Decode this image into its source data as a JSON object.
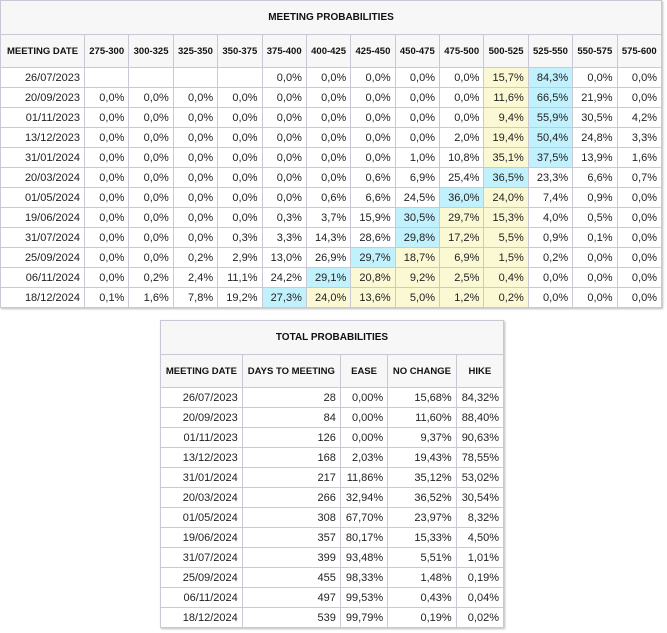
{
  "meeting": {
    "title": "MEETING PROBABILITIES",
    "headers": [
      "MEETING DATE",
      "275-300",
      "300-325",
      "325-350",
      "350-375",
      "375-400",
      "400-425",
      "425-450",
      "450-475",
      "475-500",
      "500-525",
      "525-550",
      "550-575",
      "575-600"
    ],
    "colors": {
      "yellow": "#fbf8d4",
      "blue": "#c0f1fc"
    },
    "rows": [
      {
        "date": "26/07/2023",
        "cells": [
          "",
          "",
          "",
          "",
          "0,0%",
          "0,0%",
          "0,0%",
          "0,0%",
          "0,0%",
          "15,7%",
          "84,3%",
          "0,0%",
          "0,0%"
        ],
        "hl": ".........yb.."
      },
      {
        "date": "20/09/2023",
        "cells": [
          "0,0%",
          "0,0%",
          "0,0%",
          "0,0%",
          "0,0%",
          "0,0%",
          "0,0%",
          "0,0%",
          "0,0%",
          "11,6%",
          "66,5%",
          "21,9%",
          "0,0%"
        ],
        "hl": ".........yb.."
      },
      {
        "date": "01/11/2023",
        "cells": [
          "0,0%",
          "0,0%",
          "0,0%",
          "0,0%",
          "0,0%",
          "0,0%",
          "0,0%",
          "0,0%",
          "0,0%",
          "9,4%",
          "55,9%",
          "30,5%",
          "4,2%"
        ],
        "hl": ".........yb.."
      },
      {
        "date": "13/12/2023",
        "cells": [
          "0,0%",
          "0,0%",
          "0,0%",
          "0,0%",
          "0,0%",
          "0,0%",
          "0,0%",
          "0,0%",
          "2,0%",
          "19,4%",
          "50,4%",
          "24,8%",
          "3,3%"
        ],
        "hl": ".........yb.."
      },
      {
        "date": "31/01/2024",
        "cells": [
          "0,0%",
          "0,0%",
          "0,0%",
          "0,0%",
          "0,0%",
          "0,0%",
          "0,0%",
          "1,0%",
          "10,8%",
          "35,1%",
          "37,5%",
          "13,9%",
          "1,6%"
        ],
        "hl": ".........yb.."
      },
      {
        "date": "20/03/2024",
        "cells": [
          "0,0%",
          "0,0%",
          "0,0%",
          "0,0%",
          "0,0%",
          "0,0%",
          "0,6%",
          "6,9%",
          "25,4%",
          "36,5%",
          "23,3%",
          "6,6%",
          "0,7%"
        ],
        "hl": ".........b..."
      },
      {
        "date": "01/05/2024",
        "cells": [
          "0,0%",
          "0,0%",
          "0,0%",
          "0,0%",
          "0,0%",
          "0,6%",
          "6,6%",
          "24,5%",
          "36,0%",
          "24,0%",
          "7,4%",
          "0,9%",
          "0,0%"
        ],
        "hl": "........by..."
      },
      {
        "date": "19/06/2024",
        "cells": [
          "0,0%",
          "0,0%",
          "0,0%",
          "0,0%",
          "0,3%",
          "3,7%",
          "15,9%",
          "30,5%",
          "29,7%",
          "15,3%",
          "4,0%",
          "0,5%",
          "0,0%"
        ],
        "hl": ".......byy..."
      },
      {
        "date": "31/07/2024",
        "cells": [
          "0,0%",
          "0,0%",
          "0,0%",
          "0,3%",
          "3,3%",
          "14,3%",
          "28,6%",
          "29,8%",
          "17,2%",
          "5,5%",
          "0,9%",
          "0,1%",
          "0,0%"
        ],
        "hl": ".......byy..."
      },
      {
        "date": "25/09/2024",
        "cells": [
          "0,0%",
          "0,0%",
          "0,2%",
          "2,9%",
          "13,0%",
          "26,9%",
          "29,7%",
          "18,7%",
          "6,9%",
          "1,5%",
          "0,2%",
          "0,0%",
          "0,0%"
        ],
        "hl": "......byyy..."
      },
      {
        "date": "06/11/2024",
        "cells": [
          "0,0%",
          "0,2%",
          "2,4%",
          "11,1%",
          "24,2%",
          "29,1%",
          "20,8%",
          "9,2%",
          "2,5%",
          "0,4%",
          "0,0%",
          "0,0%",
          "0,0%"
        ],
        "hl": ".....byyyy..."
      },
      {
        "date": "18/12/2024",
        "cells": [
          "0,1%",
          "1,6%",
          "7,8%",
          "19,2%",
          "27,3%",
          "24,0%",
          "13,6%",
          "5,0%",
          "1,2%",
          "0,2%",
          "0,0%",
          "0,0%",
          "0,0%"
        ],
        "hl": "....byyyyy..."
      }
    ]
  },
  "total": {
    "title": "TOTAL PROBABILITIES",
    "headers": [
      "MEETING DATE",
      "DAYS TO MEETING",
      "EASE",
      "NO CHANGE",
      "HIKE"
    ],
    "rows": [
      [
        "26/07/2023",
        "28",
        "0,00%",
        "15,68%",
        "84,32%"
      ],
      [
        "20/09/2023",
        "84",
        "0,00%",
        "11,60%",
        "88,40%"
      ],
      [
        "01/11/2023",
        "126",
        "0,00%",
        "9,37%",
        "90,63%"
      ],
      [
        "13/12/2023",
        "168",
        "2,03%",
        "19,43%",
        "78,55%"
      ],
      [
        "31/01/2024",
        "217",
        "11,86%",
        "35,12%",
        "53,02%"
      ],
      [
        "20/03/2024",
        "266",
        "32,94%",
        "36,52%",
        "30,54%"
      ],
      [
        "01/05/2024",
        "308",
        "67,70%",
        "23,97%",
        "8,32%"
      ],
      [
        "19/06/2024",
        "357",
        "80,17%",
        "15,33%",
        "4,50%"
      ],
      [
        "31/07/2024",
        "399",
        "93,48%",
        "5,51%",
        "1,01%"
      ],
      [
        "25/09/2024",
        "455",
        "98,33%",
        "1,48%",
        "0,19%"
      ],
      [
        "06/11/2024",
        "497",
        "99,53%",
        "0,43%",
        "0,04%"
      ],
      [
        "18/12/2024",
        "539",
        "99,79%",
        "0,19%",
        "0,02%"
      ]
    ]
  }
}
